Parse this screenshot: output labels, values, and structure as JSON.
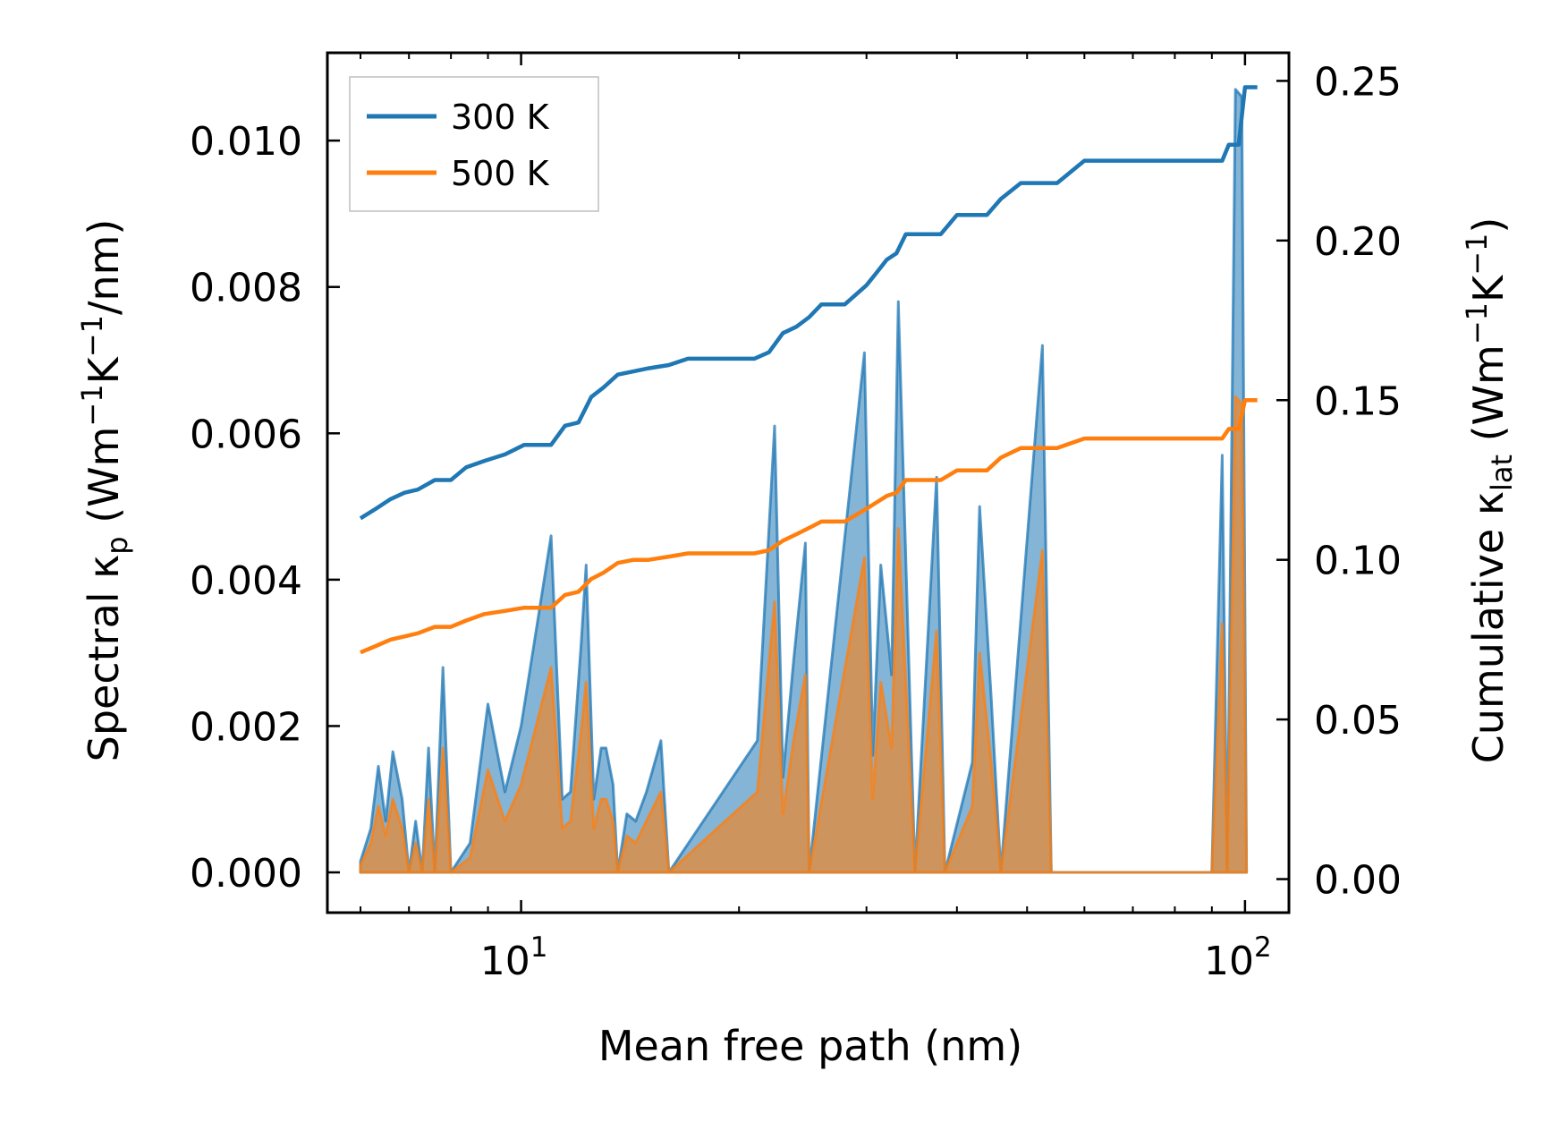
{
  "chart_data": {
    "type": "line",
    "xlabel": "Mean free path (nm)",
    "ylabel_left": {
      "main": "Spectral κ",
      "sub": "p",
      "unit_open": " (Wm",
      "sup1": "−1",
      "mid": "K",
      "sup2": "−1",
      "tail": "/nm)"
    },
    "ylabel_right": {
      "main": "Cumulative κ",
      "sub": "lat",
      "unit_open": " (Wm",
      "sup1": "−1",
      "mid": "K",
      "sup2": "−1",
      "tail": ")"
    },
    "xscale": "log",
    "xlim": [
      5.4,
      115
    ],
    "ylim_left": [
      -0.00055,
      0.0112
    ],
    "ylim_right": [
      -0.0105,
      0.2588
    ],
    "x_ticks": [
      {
        "value": 10,
        "base": "10",
        "exp": "1"
      },
      {
        "value": 100,
        "base": "10",
        "exp": "2"
      }
    ],
    "y_ticks_left": [
      {
        "value": 0.0,
        "label": "0.000"
      },
      {
        "value": 0.002,
        "label": "0.002"
      },
      {
        "value": 0.004,
        "label": "0.004"
      },
      {
        "value": 0.006,
        "label": "0.006"
      },
      {
        "value": 0.008,
        "label": "0.008"
      },
      {
        "value": 0.01,
        "label": "0.010"
      }
    ],
    "y_ticks_right": [
      {
        "value": 0.0,
        "label": "0.00"
      },
      {
        "value": 0.05,
        "label": "0.05"
      },
      {
        "value": 0.1,
        "label": "0.10"
      },
      {
        "value": 0.15,
        "label": "0.15"
      },
      {
        "value": 0.2,
        "label": "0.20"
      },
      {
        "value": 0.25,
        "label": "0.25"
      }
    ],
    "legend": {
      "position": "top-left",
      "entries": [
        {
          "label": "300 K",
          "color": "#1f77b4"
        },
        {
          "label": "500 K",
          "color": "#ff7f0e"
        }
      ]
    },
    "series": [
      {
        "name": "300 K cumulative",
        "axis": "right",
        "color": "#1f77b4",
        "x": [
          6.0,
          6.3,
          6.6,
          6.9,
          7.2,
          7.6,
          8.0,
          8.4,
          8.9,
          9.5,
          10.1,
          11.0,
          11.5,
          12.0,
          12.5,
          13.0,
          13.6,
          14.3,
          15.0,
          16.0,
          17.0,
          18.0,
          19.0,
          21.0,
          22.0,
          23.0,
          24.0,
          25.0,
          26.0,
          28.0,
          30.0,
          31.0,
          32.0,
          33.0,
          34.0,
          36.0,
          38.0,
          40.0,
          42.0,
          44.0,
          46.0,
          49.0,
          52.0,
          55.0,
          60.0,
          70.0,
          80.0,
          93.0,
          95.0,
          98.0,
          100.0,
          104.0
        ],
        "y": [
          0.113,
          0.116,
          0.119,
          0.121,
          0.122,
          0.125,
          0.125,
          0.129,
          0.131,
          0.133,
          0.136,
          0.136,
          0.142,
          0.143,
          0.151,
          0.154,
          0.158,
          0.159,
          0.16,
          0.161,
          0.163,
          0.163,
          0.163,
          0.163,
          0.165,
          0.171,
          0.173,
          0.176,
          0.18,
          0.18,
          0.186,
          0.19,
          0.194,
          0.196,
          0.202,
          0.202,
          0.202,
          0.208,
          0.208,
          0.208,
          0.213,
          0.218,
          0.218,
          0.218,
          0.225,
          0.225,
          0.225,
          0.225,
          0.23,
          0.23,
          0.248,
          0.248
        ]
      },
      {
        "name": "500 K cumulative",
        "axis": "right",
        "color": "#ff7f0e",
        "x": [
          6.0,
          6.3,
          6.6,
          6.9,
          7.2,
          7.6,
          8.0,
          8.4,
          8.9,
          9.5,
          10.1,
          11.0,
          11.5,
          12.0,
          12.5,
          13.0,
          13.6,
          14.3,
          15.0,
          16.0,
          17.0,
          18.0,
          19.0,
          21.0,
          22.0,
          23.0,
          24.0,
          25.0,
          26.0,
          28.0,
          30.0,
          31.0,
          32.0,
          33.0,
          34.0,
          36.0,
          38.0,
          40.0,
          42.0,
          44.0,
          46.0,
          49.0,
          52.0,
          55.0,
          60.0,
          70.0,
          80.0,
          93.0,
          95.0,
          98.0,
          100.0,
          104.0
        ],
        "y": [
          0.071,
          0.073,
          0.075,
          0.076,
          0.077,
          0.079,
          0.079,
          0.081,
          0.083,
          0.084,
          0.085,
          0.085,
          0.089,
          0.09,
          0.094,
          0.096,
          0.099,
          0.1,
          0.1,
          0.101,
          0.102,
          0.102,
          0.102,
          0.102,
          0.103,
          0.106,
          0.108,
          0.11,
          0.112,
          0.112,
          0.116,
          0.118,
          0.12,
          0.121,
          0.125,
          0.125,
          0.125,
          0.128,
          0.128,
          0.128,
          0.132,
          0.135,
          0.135,
          0.135,
          0.138,
          0.138,
          0.138,
          0.138,
          0.141,
          0.141,
          0.15,
          0.15
        ]
      }
    ],
    "spectral_series": [
      {
        "name": "300 K spectral",
        "axis": "left",
        "color": "#1f77b4",
        "peaks": [
          [
            6.0,
            0.00015
          ],
          [
            6.2,
            0.0006
          ],
          [
            6.35,
            0.00145
          ],
          [
            6.5,
            0.0007
          ],
          [
            6.65,
            0.00165
          ],
          [
            6.85,
            0.001
          ],
          [
            7.0,
            0.0
          ],
          [
            7.15,
            0.0007
          ],
          [
            7.3,
            0.0
          ],
          [
            7.45,
            0.0017
          ],
          [
            7.6,
            0.0
          ],
          [
            7.8,
            0.0028
          ],
          [
            8.0,
            0.0
          ],
          [
            8.5,
            0.0004
          ],
          [
            9.0,
            0.0023
          ],
          [
            9.5,
            0.0011
          ],
          [
            10.0,
            0.002
          ],
          [
            11.0,
            0.0046
          ],
          [
            11.4,
            0.001
          ],
          [
            11.7,
            0.0011
          ],
          [
            12.1,
            0.0031
          ],
          [
            12.3,
            0.0042
          ],
          [
            12.6,
            0.001
          ],
          [
            12.9,
            0.0017
          ],
          [
            13.1,
            0.0017
          ],
          [
            13.4,
            0.0012
          ],
          [
            13.6,
            0.0
          ],
          [
            14.0,
            0.0008
          ],
          [
            14.4,
            0.0007
          ],
          [
            14.9,
            0.0011
          ],
          [
            15.6,
            0.0018
          ],
          [
            16.0,
            0.0
          ],
          [
            21.2,
            0.0018
          ],
          [
            22.4,
            0.0061
          ],
          [
            23.0,
            0.0013
          ],
          [
            23.8,
            0.0029
          ],
          [
            24.7,
            0.0045
          ],
          [
            25.0,
            0.0
          ],
          [
            29.8,
            0.0071
          ],
          [
            30.6,
            0.0016
          ],
          [
            31.4,
            0.0042
          ],
          [
            32.5,
            0.0027
          ],
          [
            33.2,
            0.0078
          ],
          [
            35.0,
            0.0
          ],
          [
            37.5,
            0.0054
          ],
          [
            38.5,
            0.0
          ],
          [
            42.0,
            0.0015
          ],
          [
            43.0,
            0.005
          ],
          [
            44.6,
            0.0024
          ],
          [
            46.0,
            0.0
          ],
          [
            52.5,
            0.0072
          ],
          [
            54.0,
            0.0
          ],
          [
            90.0,
            0.0
          ],
          [
            93.0,
            0.0057
          ],
          [
            94.5,
            0.0
          ],
          [
            97.0,
            0.0107
          ],
          [
            99.0,
            0.0106
          ],
          [
            100.5,
            0.0
          ]
        ]
      },
      {
        "name": "500 K spectral",
        "axis": "left",
        "color": "#ff7f0e",
        "peaks": [
          [
            6.0,
            0.0001
          ],
          [
            6.2,
            0.0004
          ],
          [
            6.35,
            0.0009
          ],
          [
            6.5,
            0.0005
          ],
          [
            6.65,
            0.001
          ],
          [
            6.85,
            0.0006
          ],
          [
            7.0,
            0.0
          ],
          [
            7.15,
            0.0004
          ],
          [
            7.3,
            0.0
          ],
          [
            7.45,
            0.001
          ],
          [
            7.6,
            0.0
          ],
          [
            7.8,
            0.0017
          ],
          [
            8.0,
            0.0
          ],
          [
            8.5,
            0.0002
          ],
          [
            9.0,
            0.0014
          ],
          [
            9.5,
            0.0007
          ],
          [
            10.0,
            0.0012
          ],
          [
            11.0,
            0.0028
          ],
          [
            11.4,
            0.0006
          ],
          [
            11.7,
            0.0007
          ],
          [
            12.1,
            0.0019
          ],
          [
            12.3,
            0.0026
          ],
          [
            12.6,
            0.0006
          ],
          [
            12.9,
            0.001
          ],
          [
            13.1,
            0.001
          ],
          [
            13.4,
            0.0007
          ],
          [
            13.6,
            0.0
          ],
          [
            14.0,
            0.0005
          ],
          [
            14.4,
            0.0004
          ],
          [
            14.9,
            0.0007
          ],
          [
            15.6,
            0.0011
          ],
          [
            16.0,
            0.0
          ],
          [
            21.2,
            0.0011
          ],
          [
            22.4,
            0.0037
          ],
          [
            23.0,
            0.0008
          ],
          [
            23.8,
            0.0018
          ],
          [
            24.7,
            0.0027
          ],
          [
            25.0,
            0.0
          ],
          [
            29.8,
            0.0043
          ],
          [
            30.6,
            0.001
          ],
          [
            31.4,
            0.0026
          ],
          [
            32.5,
            0.0017
          ],
          [
            33.2,
            0.0047
          ],
          [
            35.0,
            0.0
          ],
          [
            37.5,
            0.0033
          ],
          [
            38.5,
            0.0
          ],
          [
            42.0,
            0.0009
          ],
          [
            43.0,
            0.003
          ],
          [
            44.6,
            0.0015
          ],
          [
            46.0,
            0.0
          ],
          [
            52.5,
            0.0044
          ],
          [
            54.0,
            0.0
          ],
          [
            90.0,
            0.0
          ],
          [
            93.0,
            0.0034
          ],
          [
            94.5,
            0.0
          ],
          [
            97.0,
            0.0065
          ],
          [
            99.0,
            0.0064
          ],
          [
            100.5,
            0.0
          ]
        ]
      }
    ]
  }
}
